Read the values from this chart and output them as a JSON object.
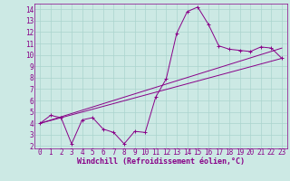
{
  "xlabel": "Windchill (Refroidissement éolien,°C)",
  "ylabel": "",
  "xlim": [
    -0.5,
    23.5
  ],
  "ylim": [
    1.8,
    14.5
  ],
  "xticks": [
    0,
    1,
    2,
    3,
    4,
    5,
    6,
    7,
    8,
    9,
    10,
    11,
    12,
    13,
    14,
    15,
    16,
    17,
    18,
    19,
    20,
    21,
    22,
    23
  ],
  "yticks": [
    2,
    3,
    4,
    5,
    6,
    7,
    8,
    9,
    10,
    11,
    12,
    13,
    14
  ],
  "bg_color": "#cce9e4",
  "line_color": "#880088",
  "grid_color": "#aad4ce",
  "line1_x": [
    0,
    1,
    2,
    3,
    4,
    5,
    6,
    7,
    8,
    9,
    10,
    11,
    12,
    13,
    14,
    15,
    16,
    17,
    18,
    19,
    20,
    21,
    22,
    23
  ],
  "line1_y": [
    4.0,
    4.7,
    4.5,
    2.2,
    4.3,
    4.5,
    3.5,
    3.2,
    2.2,
    3.3,
    3.2,
    6.3,
    7.9,
    11.9,
    13.8,
    14.2,
    12.7,
    10.8,
    10.5,
    10.4,
    10.3,
    10.7,
    10.6,
    9.7
  ],
  "line2_x": [
    0,
    23
  ],
  "line2_y": [
    4.0,
    9.7
  ],
  "line3_x": [
    0,
    23
  ],
  "line3_y": [
    4.0,
    10.6
  ],
  "font_size": 6,
  "tick_font_size": 5.5,
  "marker": "+"
}
